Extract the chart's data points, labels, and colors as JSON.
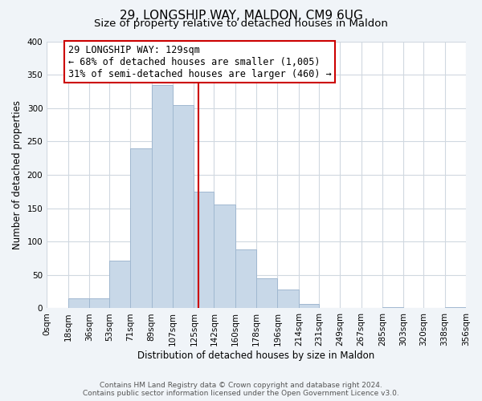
{
  "title": "29, LONGSHIP WAY, MALDON, CM9 6UG",
  "subtitle": "Size of property relative to detached houses in Maldon",
  "xlabel": "Distribution of detached houses by size in Maldon",
  "ylabel": "Number of detached properties",
  "bin_edges": [
    0,
    18,
    36,
    53,
    71,
    89,
    107,
    125,
    142,
    160,
    178,
    196,
    214,
    231,
    249,
    267,
    285,
    303,
    320,
    338,
    356
  ],
  "bin_labels": [
    "0sqm",
    "18sqm",
    "36sqm",
    "53sqm",
    "71sqm",
    "89sqm",
    "107sqm",
    "125sqm",
    "142sqm",
    "160sqm",
    "178sqm",
    "196sqm",
    "214sqm",
    "231sqm",
    "249sqm",
    "267sqm",
    "285sqm",
    "303sqm",
    "320sqm",
    "338sqm",
    "356sqm"
  ],
  "counts": [
    0,
    15,
    15,
    72,
    240,
    335,
    305,
    175,
    155,
    88,
    45,
    28,
    7,
    0,
    0,
    0,
    2,
    0,
    0,
    2
  ],
  "bar_color": "#c8d8e8",
  "bar_edge_color": "#a0b8d0",
  "property_value": 129,
  "vline_color": "#cc0000",
  "annotation_line1": "29 LONGSHIP WAY: 129sqm",
  "annotation_line2": "← 68% of detached houses are smaller (1,005)",
  "annotation_line3": "31% of semi-detached houses are larger (460) →",
  "annotation_box_edge_color": "#cc0000",
  "annotation_box_face_color": "#ffffff",
  "ylim": [
    0,
    400
  ],
  "yticks": [
    0,
    50,
    100,
    150,
    200,
    250,
    300,
    350,
    400
  ],
  "footer_line1": "Contains HM Land Registry data © Crown copyright and database right 2024.",
  "footer_line2": "Contains public sector information licensed under the Open Government Licence v3.0.",
  "background_color": "#f0f4f8",
  "plot_background_color": "#ffffff",
  "title_fontsize": 11,
  "subtitle_fontsize": 9.5,
  "axis_label_fontsize": 8.5,
  "tick_fontsize": 7.5,
  "annotation_fontsize": 8.5,
  "footer_fontsize": 6.5
}
